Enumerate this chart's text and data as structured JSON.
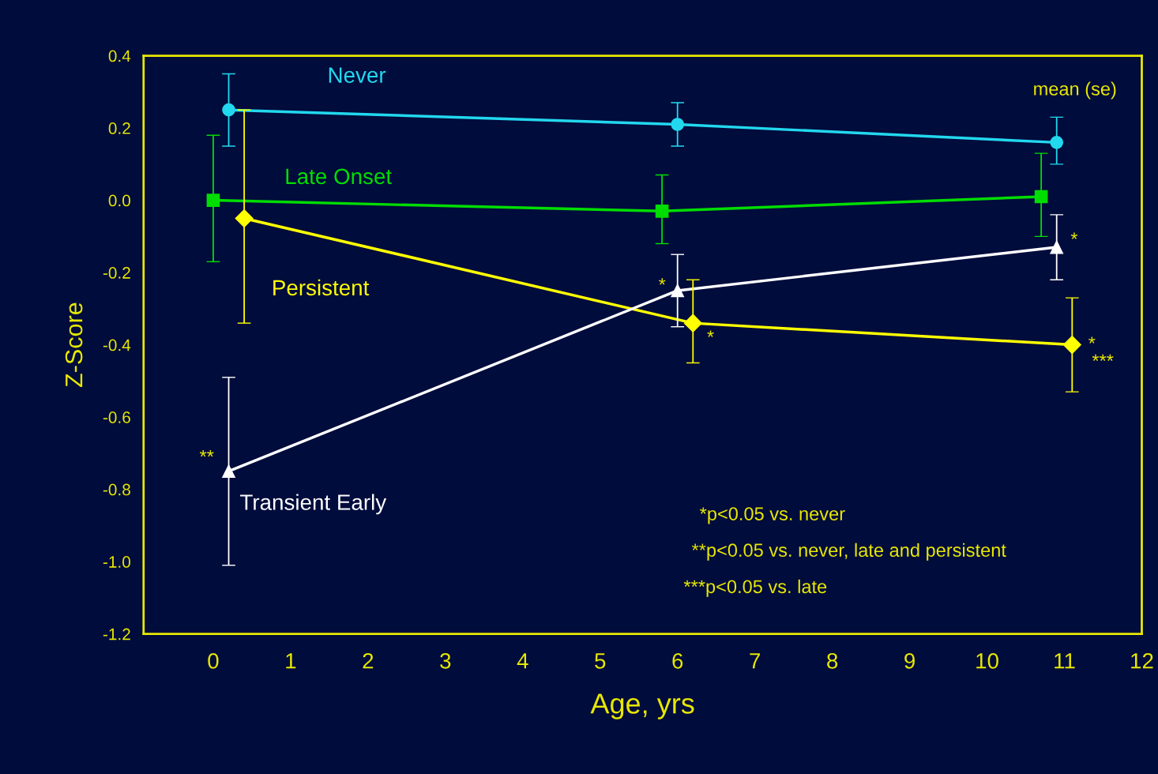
{
  "chart_data": {
    "type": "line",
    "xlabel": "Age, yrs",
    "ylabel": "Z-Score",
    "xlim": [
      -0.9,
      12
    ],
    "xticks": [
      0,
      1,
      2,
      3,
      4,
      5,
      6,
      7,
      8,
      9,
      10,
      11,
      12
    ],
    "ylim": [
      -1.2,
      0.4
    ],
    "yticks": [
      {
        "value": -1.2,
        "label": "-1.2"
      },
      {
        "value": -1.0,
        "label": "-1.0"
      },
      {
        "value": -0.8,
        "label": "-0.8"
      },
      {
        "value": -0.6,
        "label": "-0.6"
      },
      {
        "value": -0.4,
        "label": "-0.4"
      },
      {
        "value": -0.2,
        "label": "-0.2"
      },
      {
        "value": 0.0,
        "label": "0.0"
      },
      {
        "value": 0.2,
        "label": "0.2"
      },
      {
        "value": 0.4,
        "label": "0.4"
      }
    ],
    "grid": false,
    "legend": false,
    "line_style": "solid",
    "series": [
      {
        "name": "Never",
        "color": "#22d8ee",
        "marker": "circle",
        "x": [
          0.2,
          6.0,
          10.9
        ],
        "values": [
          0.25,
          0.21,
          0.16
        ],
        "errors": [
          [
            0.15,
            0.35
          ],
          [
            0.15,
            0.27
          ],
          [
            0.1,
            0.23
          ]
        ]
      },
      {
        "name": "Late Onset",
        "color": "#00dd00",
        "marker": "square",
        "x": [
          0.0,
          5.8,
          10.7
        ],
        "values": [
          0.0,
          -0.03,
          0.01
        ],
        "errors": [
          [
            -0.17,
            0.18
          ],
          [
            -0.12,
            0.07
          ],
          [
            -0.1,
            0.13
          ]
        ]
      },
      {
        "name": "Persistent",
        "color": "#ffff00",
        "marker": "diamond",
        "x": [
          0.4,
          6.2,
          11.1
        ],
        "values": [
          -0.05,
          -0.34,
          -0.4
        ],
        "errors": [
          [
            -0.34,
            0.25
          ],
          [
            -0.45,
            -0.22
          ],
          [
            -0.53,
            -0.27
          ]
        ]
      },
      {
        "name": "Transient Early",
        "color": "#ffffff",
        "marker": "triangle",
        "x": [
          0.2,
          6.0,
          10.9
        ],
        "values": [
          -0.75,
          -0.25,
          -0.13
        ],
        "errors": [
          [
            -1.01,
            -0.49
          ],
          [
            -0.35,
            -0.15
          ],
          [
            -0.22,
            -0.04
          ]
        ]
      }
    ],
    "annotations": [
      "mean (se)",
      "*p<0.05 vs. never",
      "**p<0.05 vs. never, late and persistent",
      "***p<0.05 vs. late",
      {
        "text": "**",
        "x": 0.2,
        "y": -0.75
      },
      {
        "text": "*",
        "x": 6.0,
        "y": -0.25
      },
      {
        "text": "*",
        "x": 6.2,
        "y": -0.34
      },
      {
        "text": "*",
        "x": 10.9,
        "y": -0.13
      },
      {
        "text": "*",
        "x": 11.1,
        "y": -0.4
      },
      {
        "text": "***",
        "x": 11.1,
        "y": -0.4
      }
    ]
  }
}
